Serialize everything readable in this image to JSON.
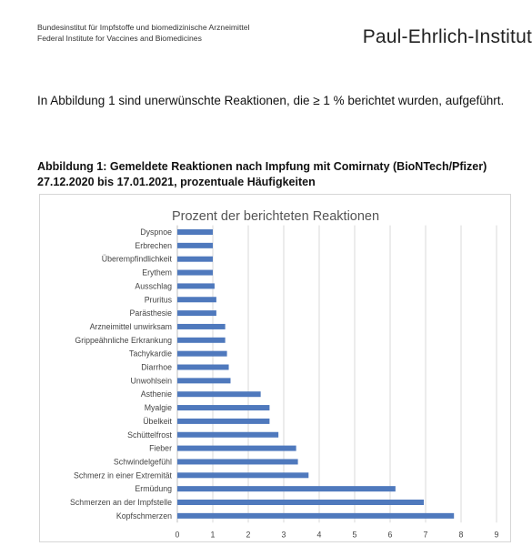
{
  "header": {
    "institute_line1": "Bundesinstitut für Impfstoffe und biomedizinische Arzneimittel",
    "institute_line2": "Federal Institute for Vaccines and Biomedicines",
    "logo_text": "Paul-Ehrlich-Institut"
  },
  "intro_text": "In Abbildung 1 sind unerwünschte Reaktionen, die ≥ 1 % berichtet wurden, aufgeführt.",
  "figure_caption": "Abbildung 1: Gemeldete Reaktionen nach Impfung mit Comirnaty (BioNTech/Pfizer) 27.12.2020 bis 17.01.2021, prozentuale Häufigkeiten",
  "chart_data": {
    "type": "bar",
    "orientation": "horizontal",
    "title": "Prozent der berichteten Reaktionen",
    "xlabel": "",
    "ylabel": "",
    "xlim": [
      0,
      9
    ],
    "x_ticks": [
      0,
      1,
      2,
      3,
      4,
      5,
      6,
      7,
      8,
      9
    ],
    "grid": "vertical",
    "bar_color": "#4f79bd",
    "categories": [
      "Dyspnoe",
      "Erbrechen",
      "Überempfindlichkeit",
      "Erythem",
      "Ausschlag",
      "Pruritus",
      "Parästhesie",
      "Arzneimittel unwirksam",
      "Grippeähnliche Erkrankung",
      "Tachykardie",
      "Diarrhoe",
      "Unwohlsein",
      "Asthenie",
      "Myalgie",
      "Übelkeit",
      "Schüttelfrost",
      "Fieber",
      "Schwindelgefühl",
      "Schmerz in einer Extremität",
      "Ermüdung",
      "Schmerzen an der Impfstelle",
      "Kopfschmerzen"
    ],
    "values": [
      1.0,
      1.0,
      1.0,
      1.0,
      1.05,
      1.1,
      1.1,
      1.35,
      1.35,
      1.4,
      1.45,
      1.5,
      2.35,
      2.6,
      2.6,
      2.85,
      3.35,
      3.4,
      3.7,
      6.15,
      6.95,
      7.8
    ]
  }
}
